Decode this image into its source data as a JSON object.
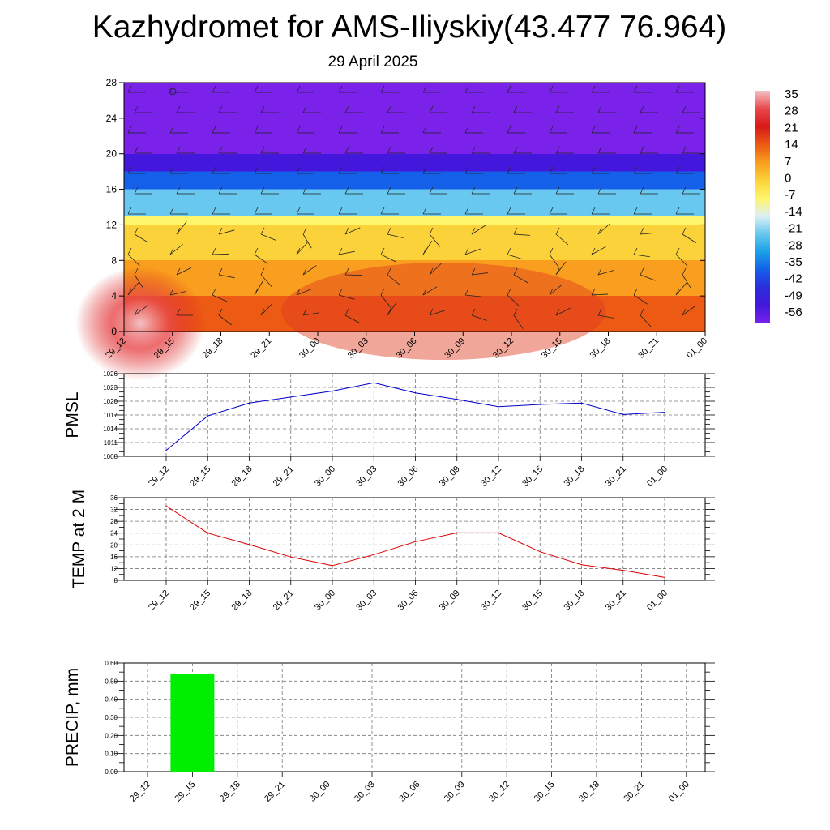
{
  "header": {
    "title": "Kazhydromet for AMS-Iliyskiy(43.477 76.964)",
    "date": "29 April 2025"
  },
  "time_labels": [
    "29_12",
    "29_15",
    "29_18",
    "29_21",
    "30_00",
    "30_03",
    "30_06",
    "30_09",
    "30_12",
    "30_15",
    "30_18",
    "30_21",
    "01_00"
  ],
  "colorbar": {
    "labels": [
      "35",
      "28",
      "21",
      "14",
      "7",
      "0",
      "-7",
      "-14",
      "-21",
      "-28",
      "-35",
      "-42",
      "-49",
      "-56"
    ],
    "colors": [
      "#f4c2c6",
      "#e8484a",
      "#d81818",
      "#ec5a14",
      "#f99e1e",
      "#fcd23a",
      "#fef66a",
      "#ddf0f4",
      "#68c8f0",
      "#1aa0e8",
      "#1460e8",
      "#2c2cdc",
      "#4418dc",
      "#7a22ea"
    ]
  },
  "chart_data": [
    {
      "type": "heatmap",
      "name": "temperature-wind-profile",
      "title": "",
      "x": [
        "29_12",
        "29_15",
        "29_18",
        "29_21",
        "30_00",
        "30_03",
        "30_06",
        "30_09",
        "30_12",
        "30_15",
        "30_18",
        "30_21",
        "01_00"
      ],
      "ylim": [
        0,
        28
      ],
      "yticks": [
        0,
        4,
        8,
        12,
        16,
        20,
        24,
        28
      ],
      "value_range": [
        -56,
        35
      ],
      "bands": [
        {
          "y": [
            0,
            4
          ],
          "value": 14
        },
        {
          "y": [
            4,
            8
          ],
          "value": 7
        },
        {
          "y": [
            8,
            12
          ],
          "value": 0
        },
        {
          "y": [
            12,
            13
          ],
          "value": -7
        },
        {
          "y": [
            13,
            16
          ],
          "value": -21
        },
        {
          "y": [
            16,
            18
          ],
          "value": -35
        },
        {
          "y": [
            18,
            20
          ],
          "value": -49
        },
        {
          "y": [
            20,
            28
          ],
          "value": -56
        }
      ],
      "wind_barbs": true
    },
    {
      "type": "line",
      "name": "PMSL",
      "ylabel": "PMSL",
      "x": [
        "29_12",
        "29_15",
        "29_18",
        "29_21",
        "30_00",
        "30_03",
        "30_06",
        "30_09",
        "30_12",
        "30_15",
        "30_18",
        "30_21",
        "01_00"
      ],
      "values": [
        1009.3,
        1016.8,
        1019.6,
        1020.9,
        1022.2,
        1024.0,
        1021.8,
        1020.4,
        1018.8,
        1019.3,
        1019.6,
        1017.1,
        1017.6
      ],
      "ylim": [
        1008,
        1026
      ],
      "yticks": [
        1008,
        1011,
        1014,
        1017,
        1020,
        1023,
        1026
      ],
      "color": "#0000cc",
      "grid": true
    },
    {
      "type": "line",
      "name": "TEMP at 2 M",
      "ylabel": "TEMP at 2 M",
      "x": [
        "29_12",
        "29_15",
        "29_18",
        "29_21",
        "30_00",
        "30_03",
        "30_06",
        "30_09",
        "30_12",
        "30_15",
        "30_18",
        "30_21",
        "01_00"
      ],
      "values": [
        33.2,
        24.0,
        20.1,
        15.9,
        13.0,
        16.7,
        21.1,
        24.1,
        24.1,
        17.7,
        13.3,
        11.4,
        9.0
      ],
      "ylim": [
        8,
        36
      ],
      "yticks": [
        8,
        12,
        16,
        20,
        24,
        28,
        32,
        36
      ],
      "color": "#dd0000",
      "grid": true
    },
    {
      "type": "bar",
      "name": "PRECIP, mm",
      "ylabel": "PRECIP, mm",
      "categories": [
        "29_12",
        "29_15",
        "29_18",
        "29_21",
        "30_00",
        "30_03",
        "30_06",
        "30_09",
        "30_12",
        "30_15",
        "30_18",
        "30_21",
        "01_00"
      ],
      "values": [
        0,
        0.54,
        0,
        0,
        0,
        0,
        0,
        0,
        0,
        0,
        0,
        0,
        0
      ],
      "ylim": [
        0,
        0.6
      ],
      "yticks": [
        "0.00",
        "0.10",
        "0.20",
        "0.30",
        "0.40",
        "0.50",
        "0.60"
      ],
      "color": "#00ee00",
      "grid": true
    }
  ]
}
